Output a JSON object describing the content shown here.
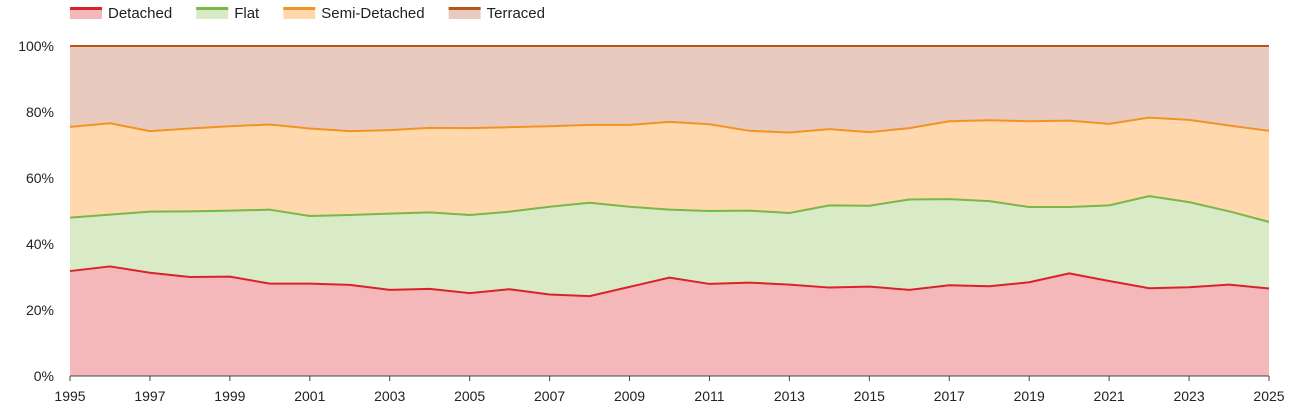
{
  "chart_data": {
    "type": "area",
    "stacked": true,
    "normalized_percent": true,
    "title": "",
    "xlabel": "",
    "ylabel": "",
    "legend_position": "top-left",
    "grid": true,
    "x": [
      1995,
      1996,
      1997,
      1998,
      1999,
      2000,
      2001,
      2002,
      2003,
      2004,
      2005,
      2006,
      2007,
      2008,
      2009,
      2010,
      2011,
      2012,
      2013,
      2014,
      2015,
      2016,
      2017,
      2018,
      2019,
      2020,
      2021,
      2022,
      2023,
      2024,
      2025
    ],
    "x_ticks": [
      "1995",
      "1997",
      "1999",
      "2001",
      "2003",
      "2005",
      "2007",
      "2009",
      "2011",
      "2013",
      "2015",
      "2017",
      "2019",
      "2021",
      "2023",
      "2025"
    ],
    "y_ticks": [
      "0%",
      "20%",
      "40%",
      "60%",
      "80%",
      "100%"
    ],
    "ylim": [
      0,
      100
    ],
    "series": [
      {
        "name": "Detached",
        "line_color": "#d8232a",
        "fill_color": "#f5b8ba",
        "values": [
          31.8,
          33.2,
          31.3,
          30.0,
          30.1,
          28.0,
          28.0,
          27.6,
          26.1,
          26.4,
          25.1,
          26.3,
          24.7,
          24.2,
          27.0,
          29.8,
          27.9,
          28.3,
          27.7,
          26.8,
          27.1,
          26.1,
          27.5,
          27.2,
          28.4,
          31.1,
          28.8,
          26.6,
          26.9,
          27.7,
          26.5
        ]
      },
      {
        "name": "Flat",
        "line_color": "#7ab648",
        "fill_color": "#d8ebc6",
        "values": [
          16.2,
          15.7,
          18.5,
          19.9,
          20.0,
          22.4,
          20.5,
          21.2,
          23.1,
          23.2,
          23.7,
          23.5,
          26.6,
          28.3,
          24.3,
          20.6,
          22.1,
          21.8,
          21.7,
          24.9,
          24.5,
          27.4,
          26.1,
          25.8,
          22.8,
          20.1,
          22.9,
          27.9,
          25.8,
          22.2,
          20.2
        ]
      },
      {
        "name": "Semi-Detached",
        "line_color": "#f39325",
        "fill_color": "#ffd9ad",
        "values": [
          27.5,
          27.7,
          24.4,
          25.1,
          25.6,
          25.8,
          26.5,
          25.4,
          25.3,
          25.6,
          26.3,
          25.6,
          24.4,
          23.6,
          24.8,
          26.6,
          26.3,
          24.2,
          24.4,
          23.1,
          22.3,
          21.6,
          23.6,
          24.5,
          26.0,
          26.2,
          24.7,
          23.8,
          24.9,
          26.0,
          27.6
        ]
      },
      {
        "name": "Terraced",
        "line_color": "#b5541b",
        "fill_color": "#e8cbbe",
        "values": [
          24.5,
          23.4,
          25.8,
          25.0,
          24.3,
          23.8,
          25.0,
          25.8,
          25.5,
          24.8,
          24.9,
          24.6,
          24.3,
          23.9,
          23.9,
          23.0,
          23.7,
          25.7,
          26.2,
          25.2,
          26.1,
          24.9,
          22.8,
          22.5,
          22.8,
          22.6,
          23.6,
          21.7,
          22.4,
          24.1,
          25.7
        ]
      }
    ]
  }
}
